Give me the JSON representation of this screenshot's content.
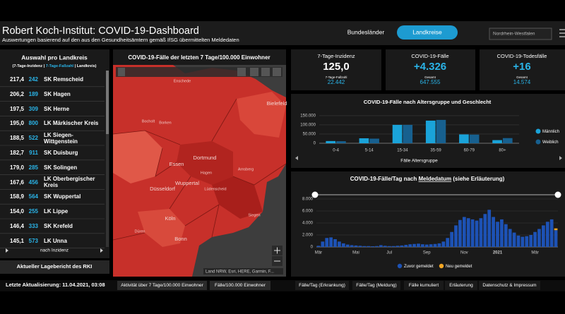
{
  "header": {
    "title": "Robert Koch-Institut: COVID-19-Dashboard",
    "subtitle": "Auswertungen basierend auf den aus den Gesundheitsämtern gemäß IfSG übermittelten Meldedaten",
    "tabs": [
      "Bundesländer",
      "Landkreise"
    ],
    "region_select": "Nordrhein-Westfalen"
  },
  "district_list": {
    "title": "Auswahl pro Landkreis",
    "legend": [
      "(7-Tage-Inzidenz |",
      "7-Tage-Fallzahl",
      "| Landkreis)"
    ],
    "rows": [
      {
        "incidence": "217,4",
        "cases": 242,
        "name": "SK Remscheid"
      },
      {
        "incidence": "206,2",
        "cases": 189,
        "name": "SK Hagen"
      },
      {
        "incidence": "197,5",
        "cases": 309,
        "name": "SK Herne"
      },
      {
        "incidence": "195,0",
        "cases": 800,
        "name": "LK Märkischer Kreis"
      },
      {
        "incidence": "188,5",
        "cases": 522,
        "name": "LK Siegen-Wittgenstein"
      },
      {
        "incidence": "182,7",
        "cases": 911,
        "name": "SK Duisburg"
      },
      {
        "incidence": "179,0",
        "cases": 285,
        "name": "SK Solingen"
      },
      {
        "incidence": "167,6",
        "cases": 456,
        "name": "LK Oberbergischer Kreis"
      },
      {
        "incidence": "158,9",
        "cases": 564,
        "name": "SK Wuppertal"
      },
      {
        "incidence": "154,0",
        "cases": 255,
        "name": "LK Lippe"
      },
      {
        "incidence": "146,4",
        "cases": 333,
        "name": "SK Krefeld"
      },
      {
        "incidence": "145,1",
        "cases": 573,
        "name": "LK Unna"
      }
    ],
    "sort_label": "nach Inzidenz",
    "report_button": "Aktueller Lagebericht des RKI",
    "last_update": "Letzte Aktualisierung: 11.04.2021, 03:08"
  },
  "map": {
    "title": "COVID-19-Fälle der letzten 7 Tage/100.000 Einwohner",
    "places": [
      "Enschede",
      "Bielefeld",
      "Bocholt",
      "Borken",
      "Dortmund",
      "Essen",
      "Hagen",
      "Arnsberg",
      "Düsseldorf",
      "Wuppertal",
      "Lüdenscheid",
      "Köln",
      "Düren",
      "Bonn",
      "Siegen"
    ],
    "attribution": "Land NRW, Esri, HERE, Garmin, F..."
  },
  "kpis": [
    {
      "label": "7-Tage-Inzidenz",
      "value": "125,0",
      "sub_label": "7-Tage-Fallzahl",
      "sub_value": "22.442"
    },
    {
      "label": "COVID-19-Fälle",
      "value": "+4.326",
      "sub_label": "Gesamt",
      "sub_value": "647.555"
    },
    {
      "label": "COVID-19-Todesfälle",
      "value": "+16",
      "sub_label": "Gesamt",
      "sub_value": "14.574"
    }
  ],
  "chart_data": [
    {
      "type": "grouped_bar",
      "title": "COVID-19-Fälle nach Altersgruppe und Geschlecht",
      "x_label": "Fälle Altersgruppe",
      "categories": [
        "0-4",
        "5-14",
        "15-34",
        "35-59",
        "60-79",
        "80+"
      ],
      "series": [
        {
          "name": "Männlich",
          "color": "#1aa3d9",
          "values": [
            12000,
            27000,
            100000,
            123000,
            48000,
            17000
          ]
        },
        {
          "name": "Weiblich",
          "color": "#17608f",
          "values": [
            11000,
            25000,
            100000,
            127000,
            47000,
            28000
          ]
        }
      ],
      "ylim": [
        0,
        165000
      ],
      "yticks": [
        0,
        {
          "value": 50000,
          "label": "50.000"
        },
        {
          "value": 100000,
          "label": "100.000"
        },
        {
          "value": 150000,
          "label": "150.000"
        }
      ],
      "grid": true,
      "legend": "right"
    },
    {
      "type": "stacked_bar",
      "title": "COVID-19-Fälle/Tag nach Meldedatum (siehe Erläuterung)",
      "title_parts": [
        "COVID-19-Fälle/Tag nach ",
        "Meldedatum",
        " (siehe Erläuterung)"
      ],
      "categories": [
        "Mär",
        null,
        null,
        null,
        null,
        null,
        null,
        null,
        null,
        "Mai",
        null,
        null,
        null,
        null,
        null,
        null,
        null,
        "Jul",
        null,
        null,
        null,
        null,
        null,
        null,
        null,
        null,
        "Sep",
        null,
        null,
        null,
        null,
        null,
        null,
        null,
        null,
        "Nov",
        null,
        null,
        null,
        null,
        null,
        null,
        null,
        "2021",
        null,
        null,
        null,
        null,
        null,
        null,
        null,
        null,
        "Mär",
        null,
        null,
        null,
        null,
        null
      ],
      "series": [
        {
          "name": "Zuvor gemeldet",
          "color": "#1d52b5",
          "values": [
            200,
            900,
            1500,
            1600,
            1300,
            900,
            600,
            400,
            300,
            250,
            200,
            150,
            150,
            120,
            150,
            300,
            200,
            150,
            150,
            200,
            250,
            350,
            450,
            500,
            550,
            450,
            400,
            450,
            500,
            600,
            900,
            1500,
            2500,
            3600,
            4500,
            5000,
            4800,
            4600,
            4400,
            4800,
            5500,
            6200,
            5000,
            4200,
            4600,
            3800,
            3000,
            2400,
            1900,
            1700,
            1800,
            2000,
            2500,
            3000,
            3600,
            4200,
            4600,
            2800
          ]
        },
        {
          "name": "Neu gemeldet",
          "color": "#f5a623",
          "values": [
            null,
            null,
            null,
            null,
            null,
            null,
            null,
            null,
            null,
            null,
            null,
            null,
            null,
            null,
            null,
            null,
            null,
            null,
            null,
            null,
            null,
            null,
            null,
            null,
            null,
            null,
            null,
            null,
            null,
            null,
            null,
            null,
            null,
            null,
            null,
            null,
            null,
            null,
            null,
            null,
            null,
            null,
            null,
            null,
            null,
            null,
            null,
            null,
            null,
            null,
            null,
            null,
            null,
            null,
            null,
            null,
            null,
            300
          ]
        }
      ],
      "ylim": [
        0,
        8000
      ],
      "yticks": [
        0,
        {
          "value": 2000,
          "label": "2.000"
        },
        {
          "value": 4000,
          "label": "4.000"
        },
        {
          "value": 6000,
          "label": "6.000"
        },
        {
          "value": 8000,
          "label": "8.000"
        }
      ],
      "grid": true,
      "legend": "bottom"
    }
  ],
  "bottom_tabs": [
    "Aktivität über 7 Tage/100.000 Einwohner",
    "Fälle/100.000 Einwohner",
    "Fälle/Tag (Erkrankung)",
    "Fälle/Tag (Meldung)",
    "Fälle kumuliert",
    "Erläuterung",
    "Datenschutz & Impressum"
  ]
}
